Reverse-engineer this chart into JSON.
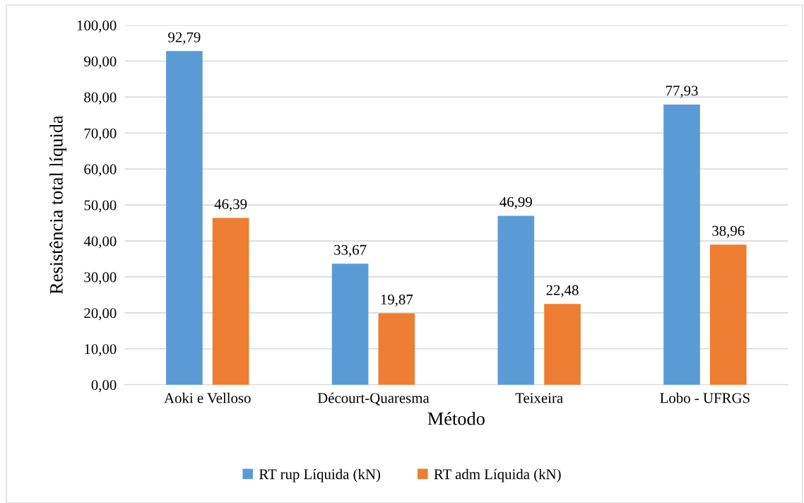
{
  "chart_data": {
    "type": "bar",
    "xlabel": "Método",
    "ylabel": "Resistência total líquida",
    "categories": [
      "Aoki e Velloso",
      "Décourt-Quaresma",
      "Teixeira",
      "Lobo - UFRGS"
    ],
    "series": [
      {
        "name": "RT rup Líquida (kN)",
        "color": "#5b9bd5",
        "values": [
          92.79,
          33.67,
          46.99,
          77.93
        ],
        "value_labels": [
          "92,79",
          "33,67",
          "46,99",
          "77,93"
        ]
      },
      {
        "name": "RT adm Líquida (kN)",
        "color": "#ed7d31",
        "values": [
          46.39,
          19.87,
          22.48,
          38.96
        ],
        "value_labels": [
          "46,39",
          "19,87",
          "22,48",
          "38,96"
        ]
      }
    ],
    "ylim": [
      0,
      100
    ],
    "yticks": [
      {
        "value": 0,
        "label": "0,00"
      },
      {
        "value": 10,
        "label": "10,00"
      },
      {
        "value": 20,
        "label": "20,00"
      },
      {
        "value": 30,
        "label": "30,00"
      },
      {
        "value": 40,
        "label": "40,00"
      },
      {
        "value": 50,
        "label": "50,00"
      },
      {
        "value": 60,
        "label": "60,00"
      },
      {
        "value": 70,
        "label": "70,00"
      },
      {
        "value": 80,
        "label": "80,00"
      },
      {
        "value": 90,
        "label": "90,00"
      },
      {
        "value": 100,
        "label": "100,00"
      }
    ],
    "grid": "y",
    "legend": "bottom"
  }
}
